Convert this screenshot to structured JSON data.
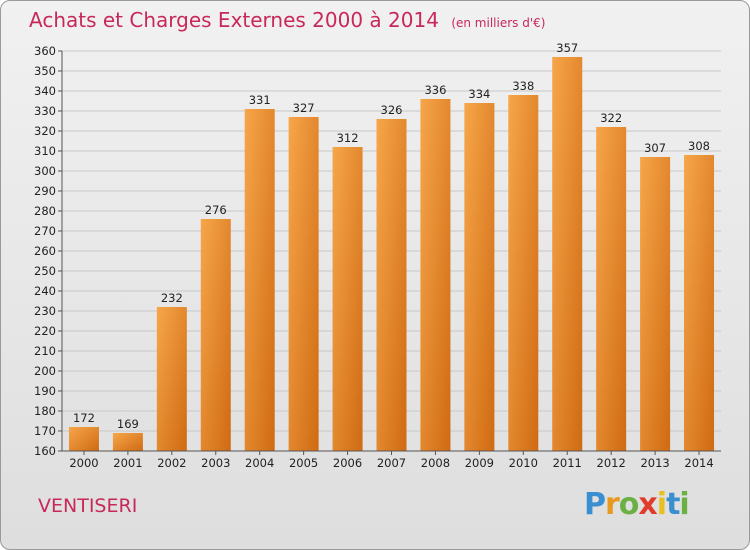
{
  "header": {
    "title": "Achats et Charges Externes 2000 à 2014",
    "subtitle": "(en milliers d'€)"
  },
  "commune": "VENTISERI",
  "logo": {
    "letters": [
      "P",
      "r",
      "o",
      "x",
      "i",
      "t",
      "i"
    ],
    "colors": [
      "#3a8fd0",
      "#e89a20",
      "#6bb043",
      "#e03b2b",
      "#e8c020",
      "#3a8fd0",
      "#6bb043"
    ]
  },
  "colors": {
    "bar_light": "#f7a64a",
    "bar_dark": "#cf6a12",
    "grid": "#c8c8c8",
    "axis": "#555555"
  },
  "chart_data": {
    "type": "bar",
    "title": "Achats et Charges Externes 2000 à 2014",
    "subtitle": "(en milliers d'€)",
    "categories": [
      "2000",
      "2001",
      "2002",
      "2003",
      "2004",
      "2005",
      "2006",
      "2007",
      "2008",
      "2009",
      "2010",
      "2011",
      "2012",
      "2013",
      "2014"
    ],
    "values": [
      172,
      169,
      232,
      276,
      331,
      327,
      312,
      326,
      336,
      334,
      338,
      357,
      322,
      307,
      308
    ],
    "ylim": [
      160,
      360
    ],
    "ytick_step": 10,
    "grid": true,
    "legend": "none"
  }
}
